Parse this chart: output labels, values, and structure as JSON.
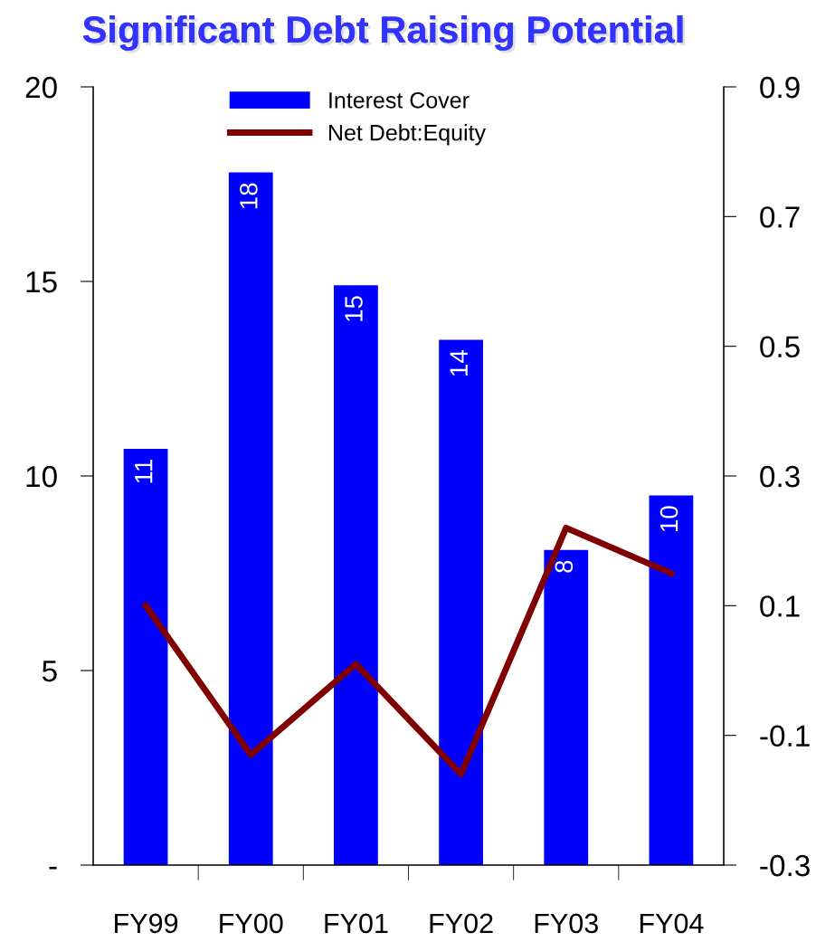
{
  "chart_data": {
    "type": "bar",
    "title": "Significant Debt Raising Potential",
    "categories": [
      "FY99",
      "FY00",
      "FY01",
      "FY02",
      "FY03",
      "FY04"
    ],
    "series": [
      {
        "name": "Interest Cover",
        "color": "#0000ff",
        "values": [
          10.7,
          17.8,
          14.9,
          13.5,
          8.1,
          9.5
        ],
        "value_labels": [
          "11",
          "18",
          "15",
          "14",
          "8",
          "10"
        ]
      },
      {
        "name": "Net Debt:Equity",
        "type": "line",
        "axis": "y2",
        "color": "#800000",
        "values": [
          0.1,
          -0.13,
          0.01,
          -0.16,
          0.22,
          0.15
        ]
      }
    ],
    "ylim": [
      0,
      20
    ],
    "yticks": [
      {
        "value": 0,
        "label": "-"
      },
      5,
      10,
      15,
      20
    ],
    "y2lim": [
      -0.3,
      0.9
    ],
    "y2ticks": [
      -0.3,
      -0.1,
      0.1,
      0.3,
      0.5,
      0.7,
      0.9
    ],
    "legend": "top",
    "grid": false,
    "marker": "none",
    "line_style": "solid"
  }
}
